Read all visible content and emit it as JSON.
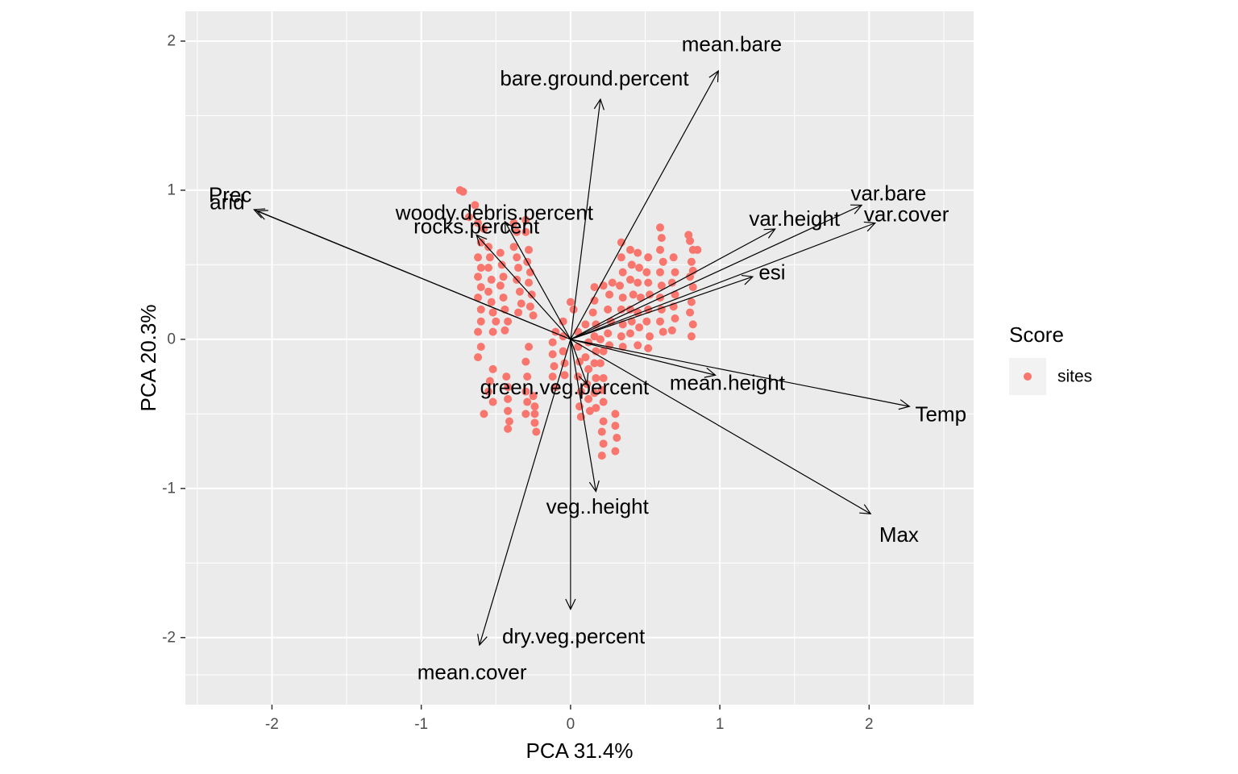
{
  "chart_data": {
    "type": "scatter",
    "subtype": "pca-biplot",
    "title": "",
    "xlabel": "PCA 31.4%",
    "ylabel": "PCA 20.3%",
    "xlim": [
      -2.58,
      2.7
    ],
    "ylim": [
      -2.45,
      2.2
    ],
    "x_ticks": [
      -2,
      -1,
      0,
      1,
      2
    ],
    "y_ticks": [
      -2,
      -1,
      0,
      1,
      2
    ],
    "x_tick_labels": [
      "-2",
      "-1",
      "0",
      "1",
      "2"
    ],
    "y_tick_labels": [
      "-2",
      "-1",
      "0",
      "1",
      "2"
    ],
    "grid": true,
    "legend": {
      "title": "Score",
      "position": "right",
      "items": [
        {
          "label": "sites",
          "color": "#F8766D"
        }
      ]
    },
    "colors": {
      "points": "#F8766D",
      "panel": "#EBEBEB",
      "grid": "#FFFFFF",
      "arrows": "#000000"
    },
    "vectors": [
      {
        "name": "mean.bare",
        "x": 0.99,
        "y": 1.8,
        "label_x": 1.08,
        "label_y": 1.98
      },
      {
        "name": "bare.ground.percent",
        "x": 0.2,
        "y": 1.61,
        "label_x": 0.16,
        "label_y": 1.75
      },
      {
        "name": "Prec",
        "x": -2.12,
        "y": 0.87,
        "label_x": -2.28,
        "label_y": 0.97
      },
      {
        "name": "arid",
        "x": -2.1,
        "y": 0.86,
        "label_x": -2.3,
        "label_y": 0.92
      },
      {
        "name": "woody.debris.percent",
        "x": -0.44,
        "y": 0.79,
        "label_x": -0.51,
        "label_y": 0.85
      },
      {
        "name": "rocks.percent",
        "x": -0.63,
        "y": 0.7,
        "label_x": -0.63,
        "label_y": 0.76
      },
      {
        "name": "var.bare",
        "x": 1.95,
        "y": 0.9,
        "label_x": 2.13,
        "label_y": 0.98
      },
      {
        "name": "var.cover",
        "x": 2.04,
        "y": 0.78,
        "label_x": 2.25,
        "label_y": 0.84
      },
      {
        "name": "var.height",
        "x": 1.37,
        "y": 0.74,
        "label_x": 1.5,
        "label_y": 0.81
      },
      {
        "name": "esi",
        "x": 1.22,
        "y": 0.42,
        "label_x": 1.35,
        "label_y": 0.45
      },
      {
        "name": "mean.height",
        "x": 0.97,
        "y": -0.24,
        "label_x": 1.05,
        "label_y": -0.29
      },
      {
        "name": "Temp",
        "x": 2.27,
        "y": -0.45,
        "label_x": 2.48,
        "label_y": -0.5
      },
      {
        "name": "green.veg.percent",
        "x": 0.11,
        "y": -0.3,
        "label_x": -0.04,
        "label_y": -0.32
      },
      {
        "name": "Max",
        "x": 2.01,
        "y": -1.17,
        "label_x": 2.2,
        "label_y": -1.31
      },
      {
        "name": "veg..height",
        "x": 0.17,
        "y": -1.02,
        "label_x": 0.18,
        "label_y": -1.12
      },
      {
        "name": "dry.veg.percent",
        "x": 0.0,
        "y": -1.81,
        "label_x": 0.02,
        "label_y": -1.99
      },
      {
        "name": "mean.cover",
        "x": -0.61,
        "y": -2.05,
        "label_x": -0.66,
        "label_y": -2.23
      }
    ],
    "points": [
      [
        -0.72,
        0.99
      ],
      [
        -0.74,
        1.0
      ],
      [
        -0.68,
        0.82
      ],
      [
        -0.64,
        0.9
      ],
      [
        -0.62,
        0.78
      ],
      [
        -0.58,
        0.74
      ],
      [
        -0.6,
        0.65
      ],
      [
        -0.62,
        0.55
      ],
      [
        -0.6,
        0.48
      ],
      [
        -0.62,
        0.42
      ],
      [
        -0.6,
        0.35
      ],
      [
        -0.62,
        0.28
      ],
      [
        -0.6,
        0.2
      ],
      [
        -0.6,
        0.12
      ],
      [
        -0.62,
        0.05
      ],
      [
        -0.6,
        -0.05
      ],
      [
        -0.62,
        -0.12
      ],
      [
        -0.55,
        0.62
      ],
      [
        -0.54,
        0.55
      ],
      [
        -0.55,
        0.48
      ],
      [
        -0.53,
        0.4
      ],
      [
        -0.55,
        0.32
      ],
      [
        -0.53,
        0.25
      ],
      [
        -0.52,
        0.18
      ],
      [
        -0.5,
        0.12
      ],
      [
        -0.52,
        0.05
      ],
      [
        -0.47,
        0.58
      ],
      [
        -0.46,
        0.5
      ],
      [
        -0.45,
        0.42
      ],
      [
        -0.47,
        0.36
      ],
      [
        -0.45,
        0.28
      ],
      [
        -0.44,
        0.2
      ],
      [
        -0.42,
        0.12
      ],
      [
        -0.44,
        0.06
      ],
      [
        -0.38,
        0.78
      ],
      [
        -0.36,
        0.72
      ],
      [
        -0.38,
        0.62
      ],
      [
        -0.36,
        0.55
      ],
      [
        -0.35,
        0.48
      ],
      [
        -0.36,
        0.4
      ],
      [
        -0.34,
        0.32
      ],
      [
        -0.33,
        0.24
      ],
      [
        -0.35,
        0.18
      ],
      [
        -0.3,
        0.8
      ],
      [
        -0.3,
        0.72
      ],
      [
        -0.28,
        0.6
      ],
      [
        -0.29,
        0.52
      ],
      [
        -0.27,
        0.45
      ],
      [
        -0.28,
        0.38
      ],
      [
        -0.26,
        0.3
      ],
      [
        -0.27,
        0.22
      ],
      [
        -0.25,
        0.16
      ],
      [
        -0.54,
        -0.28
      ],
      [
        -0.55,
        -0.35
      ],
      [
        -0.52,
        -0.42
      ],
      [
        -0.58,
        -0.5
      ],
      [
        -0.52,
        -0.2
      ],
      [
        -0.42,
        -0.32
      ],
      [
        -0.42,
        -0.4
      ],
      [
        -0.42,
        -0.48
      ],
      [
        -0.41,
        -0.55
      ],
      [
        -0.42,
        -0.6
      ],
      [
        -0.43,
        -0.25
      ],
      [
        -0.3,
        -0.15
      ],
      [
        -0.29,
        -0.25
      ],
      [
        -0.3,
        -0.35
      ],
      [
        -0.29,
        -0.42
      ],
      [
        -0.3,
        -0.5
      ],
      [
        -0.28,
        -0.05
      ],
      [
        -0.24,
        -0.45
      ],
      [
        -0.24,
        -0.5
      ],
      [
        -0.24,
        -0.56
      ],
      [
        -0.23,
        -0.62
      ],
      [
        -0.25,
        -0.38
      ],
      [
        -0.12,
        -0.02
      ],
      [
        -0.12,
        -0.1
      ],
      [
        -0.11,
        -0.18
      ],
      [
        -0.12,
        -0.25
      ],
      [
        -0.1,
        -0.32
      ],
      [
        -0.1,
        0.05
      ],
      [
        -0.05,
        0.12
      ],
      [
        -0.05,
        0.02
      ],
      [
        -0.05,
        -0.08
      ],
      [
        -0.04,
        -0.16
      ],
      [
        -0.04,
        -0.24
      ],
      [
        0.05,
        0.05
      ],
      [
        0.05,
        -0.05
      ],
      [
        0.06,
        -0.15
      ],
      [
        0.05,
        -0.25
      ],
      [
        0.07,
        -0.35
      ],
      [
        0.06,
        -0.45
      ],
      [
        0.07,
        -0.52
      ],
      [
        0.0,
        0.25
      ],
      [
        0.02,
        0.2
      ],
      [
        0.1,
        0.1
      ],
      [
        0.12,
        -0.02
      ],
      [
        0.1,
        -0.12
      ],
      [
        0.12,
        -0.2
      ],
      [
        0.11,
        -0.3
      ],
      [
        0.12,
        -0.4
      ],
      [
        0.13,
        -0.48
      ],
      [
        0.16,
        0.35
      ],
      [
        0.16,
        0.26
      ],
      [
        0.15,
        0.18
      ],
      [
        0.17,
        0.1
      ],
      [
        0.16,
        0.02
      ],
      [
        0.17,
        -0.08
      ],
      [
        0.16,
        -0.16
      ],
      [
        0.17,
        -0.26
      ],
      [
        0.16,
        -0.36
      ],
      [
        0.17,
        -0.46
      ],
      [
        0.2,
        0.0
      ],
      [
        0.22,
        -0.08
      ],
      [
        0.2,
        -0.16
      ],
      [
        0.22,
        -0.26
      ],
      [
        0.21,
        -0.34
      ],
      [
        0.22,
        -0.42
      ],
      [
        0.28,
        0.38
      ],
      [
        0.26,
        0.3
      ],
      [
        0.25,
        0.2
      ],
      [
        0.27,
        0.12
      ],
      [
        0.25,
        0.04
      ],
      [
        0.26,
        -0.04
      ],
      [
        0.22,
        0.36
      ],
      [
        0.21,
        -0.62
      ],
      [
        0.22,
        -0.7
      ],
      [
        0.21,
        -0.78
      ],
      [
        0.22,
        -0.55
      ],
      [
        0.3,
        -0.5
      ],
      [
        0.3,
        -0.58
      ],
      [
        0.31,
        -0.66
      ],
      [
        0.3,
        -0.75
      ],
      [
        0.34,
        0.65
      ],
      [
        0.34,
        0.55
      ],
      [
        0.35,
        0.45
      ],
      [
        0.33,
        0.36
      ],
      [
        0.35,
        0.28
      ],
      [
        0.34,
        0.2
      ],
      [
        0.35,
        0.1
      ],
      [
        0.34,
        0.02
      ],
      [
        0.35,
        -0.05
      ],
      [
        0.4,
        0.6
      ],
      [
        0.41,
        0.5
      ],
      [
        0.4,
        0.4
      ],
      [
        0.42,
        0.3
      ],
      [
        0.4,
        0.2
      ],
      [
        0.41,
        0.12
      ],
      [
        0.4,
        0.04
      ],
      [
        0.45,
        0.58
      ],
      [
        0.46,
        0.48
      ],
      [
        0.45,
        0.38
      ],
      [
        0.47,
        0.28
      ],
      [
        0.45,
        0.18
      ],
      [
        0.46,
        0.08
      ],
      [
        0.45,
        -0.04
      ],
      [
        0.52,
        0.55
      ],
      [
        0.51,
        0.45
      ],
      [
        0.52,
        0.38
      ],
      [
        0.53,
        0.3
      ],
      [
        0.52,
        0.2
      ],
      [
        0.51,
        0.12
      ],
      [
        0.53,
        0.02
      ],
      [
        0.52,
        -0.06
      ],
      [
        0.6,
        0.75
      ],
      [
        0.61,
        0.68
      ],
      [
        0.6,
        0.6
      ],
      [
        0.62,
        0.52
      ],
      [
        0.6,
        0.45
      ],
      [
        0.61,
        0.36
      ],
      [
        0.6,
        0.28
      ],
      [
        0.61,
        0.2
      ],
      [
        0.6,
        0.12
      ],
      [
        0.62,
        0.05
      ],
      [
        0.69,
        0.55
      ],
      [
        0.7,
        0.45
      ],
      [
        0.68,
        0.38
      ],
      [
        0.7,
        0.3
      ],
      [
        0.69,
        0.22
      ],
      [
        0.7,
        0.14
      ],
      [
        0.68,
        0.06
      ],
      [
        0.79,
        0.7
      ],
      [
        0.8,
        0.66
      ],
      [
        0.82,
        0.6
      ],
      [
        0.81,
        0.52
      ],
      [
        0.8,
        0.42
      ],
      [
        0.82,
        0.35
      ],
      [
        0.81,
        0.25
      ],
      [
        0.8,
        0.18
      ],
      [
        0.82,
        0.1
      ],
      [
        0.81,
        0.02
      ],
      [
        0.85,
        0.6
      ],
      [
        0.82,
        0.46
      ]
    ]
  }
}
